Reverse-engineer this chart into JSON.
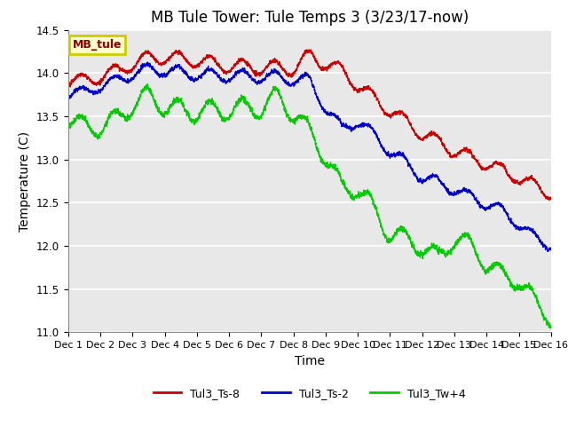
{
  "title": "MB Tule Tower: Tule Temps 3 (3/23/17-now)",
  "xlabel": "Time",
  "ylabel": "Temperature (C)",
  "ylim": [
    11.0,
    14.5
  ],
  "yticks": [
    11.0,
    11.5,
    12.0,
    12.5,
    13.0,
    13.5,
    14.0,
    14.5
  ],
  "xtick_labels": [
    "Dec 1",
    "Dec 2",
    "Dec 3",
    "Dec 4",
    "Dec 5",
    "Dec 6",
    "Dec 7",
    "Dec 8",
    "Dec 9",
    "Dec 10",
    "Dec 11",
    "Dec 12",
    "Dec 13",
    "Dec 14",
    "Dec 15",
    "Dec 16"
  ],
  "series_colors": [
    "#cc0000",
    "#0000cc",
    "#00cc00"
  ],
  "series_labels": [
    "Tul3_Ts-8",
    "Tul3_Ts-2",
    "Tul3_Tw+4"
  ],
  "legend_label": "MB_tule",
  "legend_bg": "#ffffcc",
  "legend_border": "#cccc00",
  "legend_text_color": "#880000",
  "background_color": "#ffffff",
  "plot_bg_color": "#e8e8e8",
  "grid_color": "#ffffff",
  "title_fontsize": 12,
  "axis_fontsize": 10,
  "tick_fontsize": 8.5
}
